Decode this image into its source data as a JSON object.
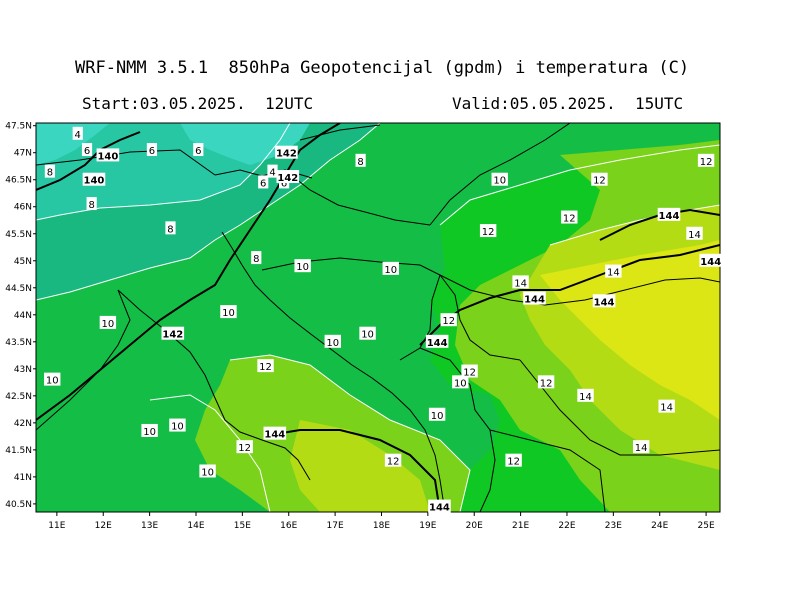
{
  "header": {
    "title": "WRF-NMM 3.5.1  850hPa Geopotencijal (gpdm) i temperatura (C)",
    "start": "Start:03.05.2025.  12UTC",
    "valid": "Valid:05.05.2025.  15UTC"
  },
  "axes": {
    "lon_ticks": [
      "11E",
      "12E",
      "13E",
      "14E",
      "15E",
      "16E",
      "17E",
      "18E",
      "19E",
      "20E",
      "21E",
      "22E",
      "23E",
      "24E",
      "25E"
    ],
    "lat_ticks": [
      "47.5N",
      "47N",
      "46.5N",
      "46N",
      "45.5N",
      "45N",
      "44.5N",
      "44N",
      "43.5N",
      "43N",
      "42.5N",
      "42N",
      "41.5N",
      "41N",
      "40.5N"
    ]
  },
  "colors": {
    "temp_4": "#3ad6c0",
    "temp_6": "#28c7a4",
    "temp_8": "#18b880",
    "temp_10": "#14be46",
    "temp_12": "#10c824",
    "temp_12b": "#7ad21a",
    "temp_14": "#b4dc14",
    "temp_16": "#dce614",
    "border": "#000000",
    "contour": "#ffffff"
  },
  "labels": {
    "temperature": [
      {
        "text": "4",
        "lon": 11.45,
        "lat": 47.35
      },
      {
        "text": "6",
        "lon": 11.65,
        "lat": 47.05
      },
      {
        "text": "6",
        "lon": 13.05,
        "lat": 47.05
      },
      {
        "text": "6",
        "lon": 14.05,
        "lat": 47.05
      },
      {
        "text": "8",
        "lon": 10.85,
        "lat": 46.65
      },
      {
        "text": "8",
        "lon": 11.75,
        "lat": 46.05
      },
      {
        "text": "4",
        "lon": 15.65,
        "lat": 46.65
      },
      {
        "text": "6",
        "lon": 15.45,
        "lat": 46.45
      },
      {
        "text": "6",
        "lon": 15.9,
        "lat": 46.45
      },
      {
        "text": "8",
        "lon": 17.55,
        "lat": 46.85
      },
      {
        "text": "8",
        "lon": 13.45,
        "lat": 45.6
      },
      {
        "text": "8",
        "lon": 15.3,
        "lat": 45.05
      },
      {
        "text": "10",
        "lon": 20.55,
        "lat": 46.5
      },
      {
        "text": "10",
        "lon": 16.3,
        "lat": 44.9
      },
      {
        "text": "10",
        "lon": 18.2,
        "lat": 44.85
      },
      {
        "text": "10",
        "lon": 14.7,
        "lat": 44.05
      },
      {
        "text": "10",
        "lon": 12.1,
        "lat": 43.85
      },
      {
        "text": "10",
        "lon": 17.7,
        "lat": 43.65
      },
      {
        "text": "10",
        "lon": 16.95,
        "lat": 43.5
      },
      {
        "text": "10",
        "lon": 10.9,
        "lat": 42.8
      },
      {
        "text": "10",
        "lon": 13.6,
        "lat": 41.95
      },
      {
        "text": "10",
        "lon": 13.0,
        "lat": 41.85
      },
      {
        "text": "10",
        "lon": 19.7,
        "lat": 42.75
      },
      {
        "text": "10",
        "lon": 19.2,
        "lat": 42.15
      },
      {
        "text": "10",
        "lon": 14.25,
        "lat": 41.1
      },
      {
        "text": "12",
        "lon": 22.7,
        "lat": 46.5
      },
      {
        "text": "12",
        "lon": 25.0,
        "lat": 46.85
      },
      {
        "text": "12",
        "lon": 20.3,
        "lat": 45.55
      },
      {
        "text": "12",
        "lon": 22.05,
        "lat": 45.8
      },
      {
        "text": "12",
        "lon": 19.45,
        "lat": 43.9
      },
      {
        "text": "12",
        "lon": 15.5,
        "lat": 43.05
      },
      {
        "text": "12",
        "lon": 19.9,
        "lat": 42.95
      },
      {
        "text": "12",
        "lon": 21.55,
        "lat": 42.75
      },
      {
        "text": "12",
        "lon": 15.05,
        "lat": 41.55
      },
      {
        "text": "12",
        "lon": 18.25,
        "lat": 41.3
      },
      {
        "text": "12",
        "lon": 20.85,
        "lat": 41.3
      },
      {
        "text": "14",
        "lon": 21.0,
        "lat": 44.6
      },
      {
        "text": "14",
        "lon": 23.0,
        "lat": 44.8
      },
      {
        "text": "14",
        "lon": 24.75,
        "lat": 45.5
      },
      {
        "text": "14",
        "lon": 22.4,
        "lat": 42.5
      },
      {
        "text": "14",
        "lon": 24.15,
        "lat": 42.3
      },
      {
        "text": "14",
        "lon": 23.6,
        "lat": 41.55
      }
    ],
    "geopotential": [
      {
        "text": "140",
        "lon": 12.1,
        "lat": 46.95
      },
      {
        "text": "140",
        "lon": 11.8,
        "lat": 46.5
      },
      {
        "text": "142",
        "lon": 15.95,
        "lat": 47.0
      },
      {
        "text": "142",
        "lon": 15.98,
        "lat": 46.55
      },
      {
        "text": "142",
        "lon": 13.5,
        "lat": 43.65
      },
      {
        "text": "144",
        "lon": 24.2,
        "lat": 45.85
      },
      {
        "text": "144",
        "lon": 25.1,
        "lat": 45.0
      },
      {
        "text": "144",
        "lon": 21.3,
        "lat": 44.3
      },
      {
        "text": "144",
        "lon": 22.8,
        "lat": 44.25
      },
      {
        "text": "144",
        "lon": 19.2,
        "lat": 43.5
      },
      {
        "text": "144",
        "lon": 15.7,
        "lat": 41.8
      },
      {
        "text": "144",
        "lon": 19.25,
        "lat": 40.45
      }
    ]
  }
}
